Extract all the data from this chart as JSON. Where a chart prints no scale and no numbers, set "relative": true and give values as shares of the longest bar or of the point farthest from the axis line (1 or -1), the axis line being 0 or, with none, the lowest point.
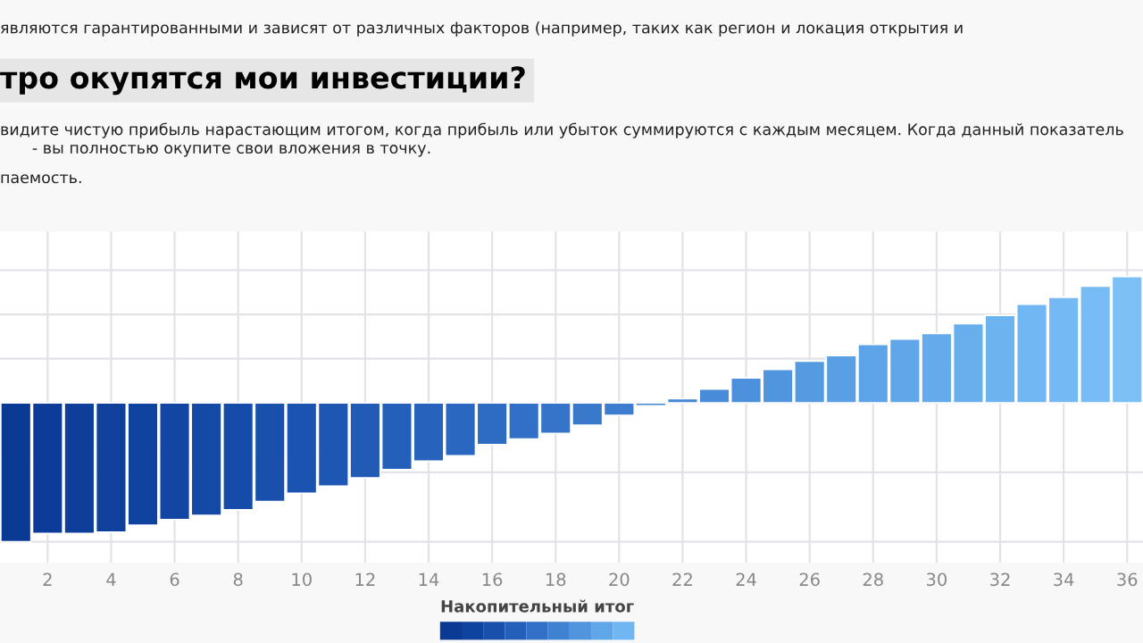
{
  "chart_data": {
    "type": "bar",
    "title": "тро окупятся мои инвестиции?",
    "annotations": [
      "являются гарантированными и зависят от различных факторов (например, таких как регион и локация открытия и",
      "видите чистую прибыль нарастающим итогом, когда прибыль или убыток суммируются с каждым месяцем. Когда данный показатель",
      "- вы полностью окупите свои вложения в точку.",
      "паемость."
    ],
    "x": [
      1,
      2,
      3,
      4,
      5,
      6,
      7,
      8,
      9,
      10,
      11,
      12,
      13,
      14,
      15,
      16,
      17,
      18,
      19,
      20,
      21,
      22,
      23,
      24,
      25,
      26,
      27,
      28,
      29,
      30,
      31,
      32,
      33,
      34,
      35,
      36
    ],
    "relative": true,
    "series": [
      {
        "values": [
          -1,
          -0.94,
          -0.94,
          -0.93,
          -0.88,
          -0.84,
          -0.81,
          -0.77,
          -0.71,
          -0.65,
          -0.6,
          -0.54,
          -0.48,
          -0.42,
          -0.38,
          -0.3,
          -0.26,
          -0.22,
          -0.16,
          -0.09,
          -0.02,
          0.03,
          0.1,
          0.18,
          0.24,
          0.3,
          0.34,
          0.42,
          0.46,
          0.5,
          0.57,
          0.63,
          0.71,
          0.76,
          0.84,
          0.91
        ],
        "colors": [
          "#0b3a94",
          "#0c3c97",
          "#0d3e99",
          "#0e409c",
          "#10439f",
          "#1246a2",
          "#1449a6",
          "#164ca9",
          "#1950ac",
          "#1b53b0",
          "#1e57b3",
          "#215bb6",
          "#245fb9",
          "#2763bd",
          "#2a67c0",
          "#2e6bc3",
          "#3170c6",
          "#3574c9",
          "#3879cc",
          "#3c7dcf",
          "#4082d2",
          "#4487d5",
          "#488bd8",
          "#4c90db",
          "#5095de",
          "#549ae1",
          "#589fe4",
          "#5ca3e7",
          "#60a7ea",
          "#64abec",
          "#68afee",
          "#6cb3f0",
          "#70b6f2",
          "#74b9f3",
          "#77bcf4",
          "#7bbff5"
        ]
      }
    ],
    "xlim": [
      0.5,
      36.5
    ],
    "xticks": [
      2,
      4,
      6,
      8,
      10,
      12,
      14,
      16,
      18,
      20,
      22,
      24,
      26,
      28,
      30,
      32,
      34,
      36
    ],
    "legend_title": "Накопительный итог",
    "grid": true
  }
}
